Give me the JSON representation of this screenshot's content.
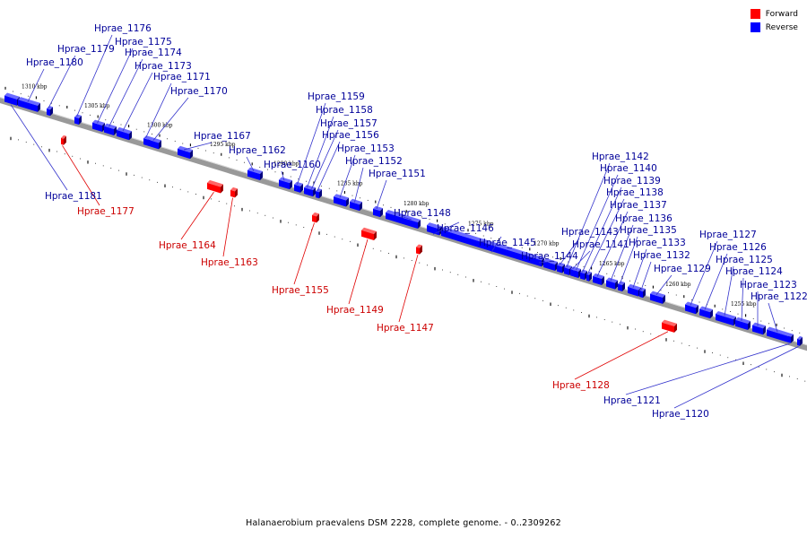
{
  "title": "Halanaerobium praevalens DSM 2228, complete genome. - 0..2309262",
  "legend": [
    {
      "label": "Forward",
      "color": "#ff0000"
    },
    {
      "label": "Reverse",
      "color": "#0000ff"
    }
  ],
  "colors": {
    "forward": "#ff0000",
    "forward_label": "#cc0000",
    "reverse": "#0000ff",
    "reverse_label": "#000099",
    "backbone": "#999999"
  },
  "kbp_labels": [
    "1310 kbp",
    "1305 kbp",
    "1300 kbp",
    "1295 kbp",
    "1290 kbp",
    "1285 kbp",
    "1280 kbp",
    "1275 kbp",
    "1270 kbp",
    "1265 kbp",
    "1260 kbp",
    "1255 kbp"
  ],
  "genes": [
    {
      "name": "Hprae_1181",
      "strand": "reverse"
    },
    {
      "name": "Hprae_1180",
      "strand": "reverse"
    },
    {
      "name": "Hprae_1179",
      "strand": "reverse"
    },
    {
      "name": "Hprae_1177",
      "strand": "forward"
    },
    {
      "name": "Hprae_1176",
      "strand": "reverse"
    },
    {
      "name": "Hprae_1175",
      "strand": "reverse"
    },
    {
      "name": "Hprae_1174",
      "strand": "reverse"
    },
    {
      "name": "Hprae_1173",
      "strand": "reverse"
    },
    {
      "name": "Hprae_1171",
      "strand": "reverse"
    },
    {
      "name": "Hprae_1170",
      "strand": "reverse"
    },
    {
      "name": "Hprae_1167",
      "strand": "reverse"
    },
    {
      "name": "Hprae_1164",
      "strand": "forward"
    },
    {
      "name": "Hprae_1163",
      "strand": "forward"
    },
    {
      "name": "Hprae_1162",
      "strand": "reverse"
    },
    {
      "name": "Hprae_1160",
      "strand": "reverse"
    },
    {
      "name": "Hprae_1159",
      "strand": "reverse"
    },
    {
      "name": "Hprae_1158",
      "strand": "reverse"
    },
    {
      "name": "Hprae_1157",
      "strand": "reverse"
    },
    {
      "name": "Hprae_1156",
      "strand": "reverse"
    },
    {
      "name": "Hprae_1155",
      "strand": "forward"
    },
    {
      "name": "Hprae_1153",
      "strand": "reverse"
    },
    {
      "name": "Hprae_1152",
      "strand": "reverse"
    },
    {
      "name": "Hprae_1151",
      "strand": "reverse"
    },
    {
      "name": "Hprae_1149",
      "strand": "forward"
    },
    {
      "name": "Hprae_1148",
      "strand": "reverse"
    },
    {
      "name": "Hprae_1147",
      "strand": "forward"
    },
    {
      "name": "Hprae_1146",
      "strand": "reverse"
    },
    {
      "name": "Hprae_1145",
      "strand": "reverse"
    },
    {
      "name": "Hprae_1144",
      "strand": "reverse"
    },
    {
      "name": "Hprae_1143",
      "strand": "reverse"
    },
    {
      "name": "Hprae_1142",
      "strand": "reverse"
    },
    {
      "name": "Hprae_1141",
      "strand": "reverse"
    },
    {
      "name": "Hprae_1140",
      "strand": "reverse"
    },
    {
      "name": "Hprae_1139",
      "strand": "reverse"
    },
    {
      "name": "Hprae_1138",
      "strand": "reverse"
    },
    {
      "name": "Hprae_1137",
      "strand": "reverse"
    },
    {
      "name": "Hprae_1136",
      "strand": "reverse"
    },
    {
      "name": "Hprae_1135",
      "strand": "reverse"
    },
    {
      "name": "Hprae_1133",
      "strand": "reverse"
    },
    {
      "name": "Hprae_1132",
      "strand": "reverse"
    },
    {
      "name": "Hprae_1129",
      "strand": "reverse"
    },
    {
      "name": "Hprae_1128",
      "strand": "forward"
    },
    {
      "name": "Hprae_1127",
      "strand": "reverse"
    },
    {
      "name": "Hprae_1126",
      "strand": "reverse"
    },
    {
      "name": "Hprae_1125",
      "strand": "reverse"
    },
    {
      "name": "Hprae_1124",
      "strand": "reverse"
    },
    {
      "name": "Hprae_1123",
      "strand": "reverse"
    },
    {
      "name": "Hprae_1122",
      "strand": "reverse"
    },
    {
      "name": "Hprae_1121",
      "strand": "reverse"
    },
    {
      "name": "Hprae_1120",
      "strand": "reverse"
    }
  ]
}
